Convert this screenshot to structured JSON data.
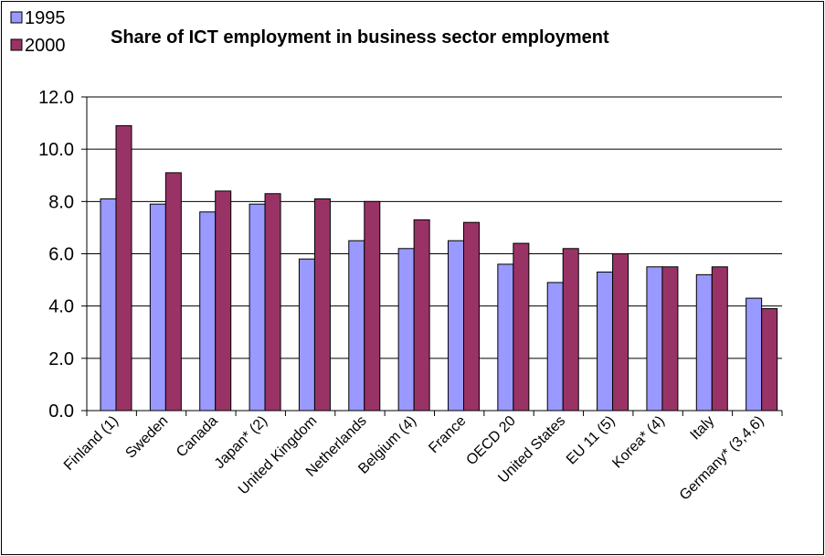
{
  "chart_data": {
    "type": "bar",
    "title": "Share of ICT employment in business sector employment",
    "xlabel": "",
    "ylabel": "",
    "ylim": [
      0,
      12
    ],
    "yticks": [
      "0.0",
      "2.0",
      "4.0",
      "6.0",
      "8.0",
      "10.0",
      "12.0"
    ],
    "grid": true,
    "legend_position": "top-left",
    "categories": [
      "Finland (1)",
      "Sweden",
      "Canada",
      "Japan* (2)",
      "United Kingdom",
      "Netherlands",
      "Belgium (4)",
      "France",
      "OECD 20",
      "United States",
      "EU 11 (5)",
      "Korea* (4)",
      "Italy",
      "Germany* (3,4,6)"
    ],
    "series": [
      {
        "name": "1995",
        "color": "#9999ff",
        "values": [
          8.1,
          7.9,
          7.6,
          7.9,
          5.8,
          6.5,
          6.2,
          6.5,
          5.6,
          4.9,
          5.3,
          5.5,
          5.2,
          4.3
        ]
      },
      {
        "name": "2000",
        "color": "#993366",
        "values": [
          10.9,
          9.1,
          8.4,
          8.3,
          8.1,
          8.0,
          7.3,
          7.2,
          6.4,
          6.2,
          6.0,
          5.5,
          5.5,
          3.9
        ]
      }
    ]
  }
}
